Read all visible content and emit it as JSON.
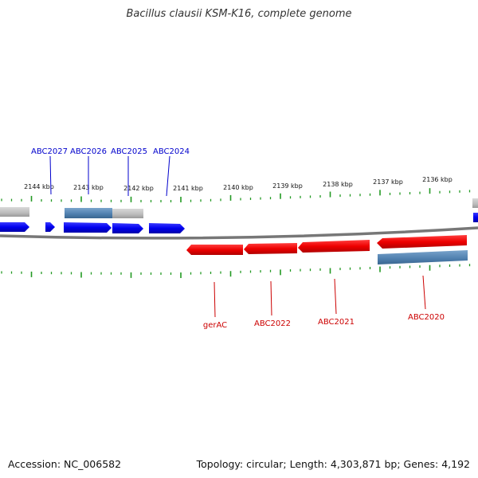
{
  "title": "Bacillus clausii KSM-K16, complete genome",
  "footer": {
    "accession": "Accession: NC_006582",
    "summary": "Topology: circular; Length: 4,303,871 bp; Genes: 4,192"
  },
  "colors": {
    "forward_gene": "#0000ee",
    "reverse_gene": "#ee0000",
    "cds_blue": "#4f7fae",
    "cds_grey": "#bbbbbb",
    "backbone": "#888888",
    "ticks": "#229922",
    "scale_text": "#111111"
  },
  "scale": [
    {
      "label": "2144 kbp"
    },
    {
      "label": "2143 kbp"
    },
    {
      "label": "2142 kbp"
    },
    {
      "label": "2141 kbp"
    },
    {
      "label": "2140 kbp"
    },
    {
      "label": "2139 kbp"
    },
    {
      "label": "2138 kbp"
    },
    {
      "label": "2137 kbp"
    },
    {
      "label": "2136 kbp"
    }
  ],
  "forward_genes": [
    {
      "label": "ABC2027"
    },
    {
      "label": "ABC2026"
    },
    {
      "label": "ABC2025"
    },
    {
      "label": "ABC2024"
    }
  ],
  "reverse_genes": [
    {
      "label": "gerAC"
    },
    {
      "label": "ABC2022"
    },
    {
      "label": "ABC2021"
    },
    {
      "label": "ABC2020"
    }
  ]
}
